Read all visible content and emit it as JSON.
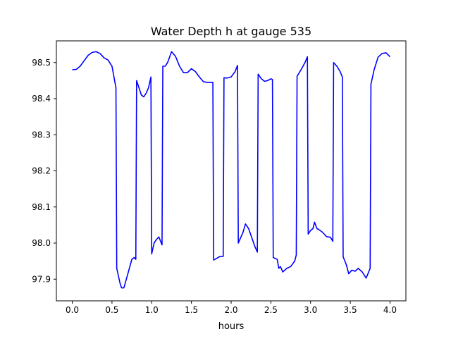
{
  "chart_data": {
    "type": "line",
    "title": "Water Depth h at gauge 535",
    "xlabel": "hours",
    "ylabel": "",
    "xlim": [
      -0.2,
      4.2
    ],
    "ylim": [
      97.84,
      98.56
    ],
    "xticks": [
      0.0,
      0.5,
      1.0,
      1.5,
      2.0,
      2.5,
      3.0,
      3.5,
      4.0
    ],
    "xtick_labels": [
      "0.0",
      "0.5",
      "1.0",
      "1.5",
      "2.0",
      "2.5",
      "3.0",
      "3.5",
      "4.0"
    ],
    "yticks": [
      97.9,
      98.0,
      98.1,
      98.2,
      98.3,
      98.4,
      98.5
    ],
    "ytick_labels": [
      "97.9",
      "98.0",
      "98.1",
      "98.2",
      "98.3",
      "98.4",
      "98.5"
    ],
    "grid": false,
    "series": [
      {
        "color": "#0000ff",
        "x": [
          0.0,
          0.05,
          0.1,
          0.15,
          0.2,
          0.25,
          0.3,
          0.35,
          0.4,
          0.45,
          0.5,
          0.55,
          0.56,
          0.58,
          0.6,
          0.62,
          0.65,
          0.7,
          0.75,
          0.78,
          0.8,
          0.81,
          0.84,
          0.87,
          0.9,
          0.93,
          0.96,
          0.99,
          1.0,
          1.03,
          1.06,
          1.09,
          1.13,
          1.14,
          1.17,
          1.2,
          1.25,
          1.3,
          1.35,
          1.4,
          1.45,
          1.5,
          1.55,
          1.6,
          1.65,
          1.7,
          1.77,
          1.78,
          1.82,
          1.86,
          1.9,
          1.91,
          1.95,
          2.0,
          2.05,
          2.08,
          2.09,
          2.12,
          2.15,
          2.18,
          2.22,
          2.26,
          2.3,
          2.33,
          2.34,
          2.38,
          2.42,
          2.46,
          2.5,
          2.52,
          2.53,
          2.58,
          2.6,
          2.62,
          2.65,
          2.7,
          2.75,
          2.8,
          2.82,
          2.83,
          2.88,
          2.93,
          2.96,
          2.97,
          3.0,
          3.03,
          3.05,
          3.08,
          3.1,
          3.15,
          3.2,
          3.25,
          3.28,
          3.29,
          3.33,
          3.37,
          3.4,
          3.41,
          3.45,
          3.48,
          3.52,
          3.56,
          3.6,
          3.65,
          3.7,
          3.75,
          3.76,
          3.8,
          3.85,
          3.9,
          3.95,
          4.0
        ],
        "y": [
          98.48,
          98.481,
          98.49,
          98.505,
          98.52,
          98.528,
          98.53,
          98.525,
          98.513,
          98.507,
          98.49,
          98.43,
          97.93,
          97.91,
          97.89,
          97.876,
          97.876,
          97.915,
          97.955,
          97.96,
          97.955,
          98.45,
          98.43,
          98.41,
          98.405,
          98.415,
          98.43,
          98.46,
          97.97,
          98.0,
          98.01,
          98.017,
          97.995,
          98.49,
          98.49,
          98.5,
          98.53,
          98.517,
          98.49,
          98.472,
          98.472,
          98.483,
          98.475,
          98.46,
          98.447,
          98.445,
          98.445,
          97.953,
          97.958,
          97.963,
          97.963,
          98.458,
          98.457,
          98.46,
          98.475,
          98.492,
          98.0,
          98.015,
          98.03,
          98.053,
          98.04,
          98.015,
          97.99,
          97.975,
          98.468,
          98.455,
          98.448,
          98.45,
          98.455,
          98.453,
          97.96,
          97.955,
          97.93,
          97.935,
          97.92,
          97.93,
          97.935,
          97.95,
          97.967,
          98.462,
          98.48,
          98.5,
          98.516,
          98.025,
          98.035,
          98.04,
          98.058,
          98.04,
          98.038,
          98.03,
          98.018,
          98.016,
          98.005,
          98.5,
          98.49,
          98.476,
          98.46,
          97.962,
          97.94,
          97.915,
          97.925,
          97.922,
          97.93,
          97.92,
          97.903,
          97.93,
          98.44,
          98.48,
          98.515,
          98.525,
          98.527,
          98.516
        ]
      }
    ]
  }
}
